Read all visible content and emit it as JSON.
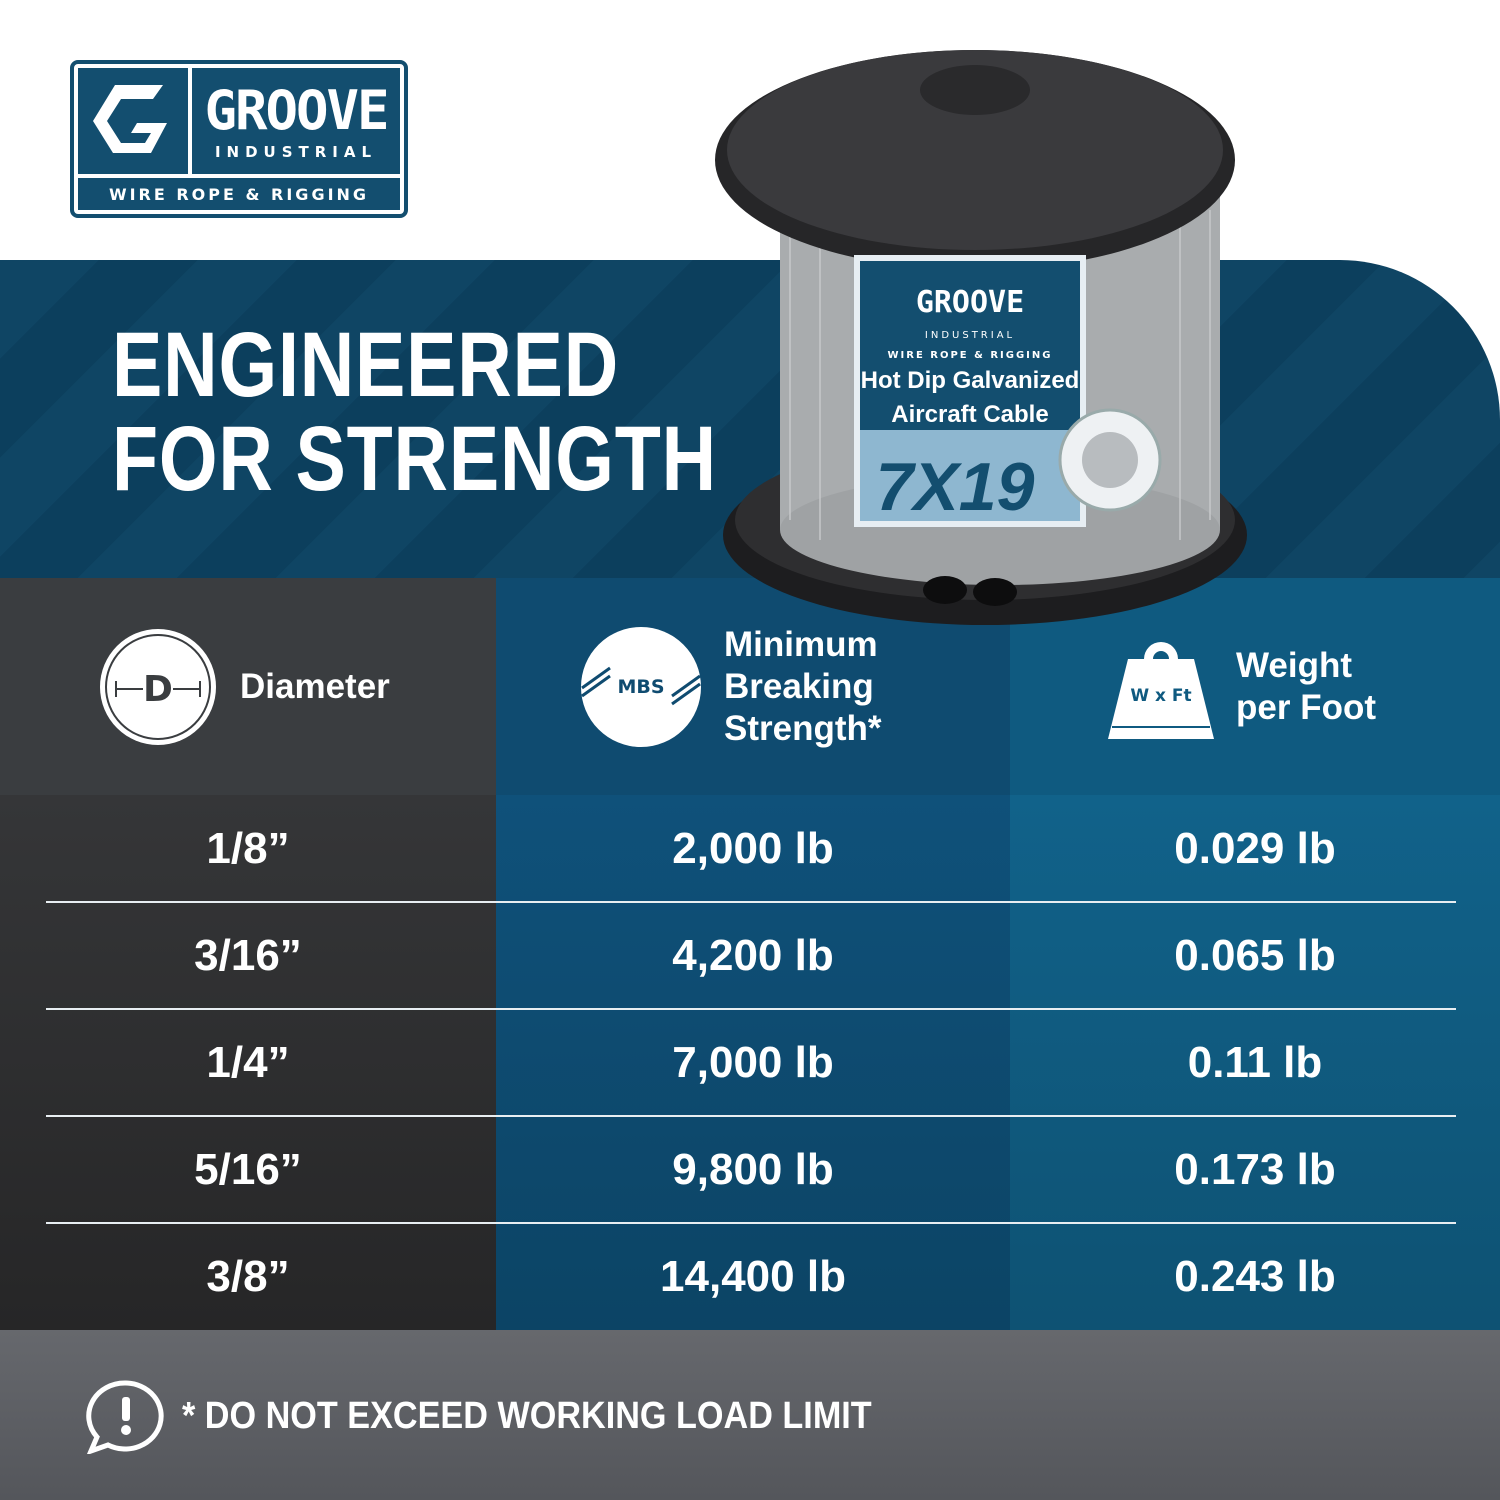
{
  "brand": {
    "name": "GROOVE",
    "sub": "INDUSTRIAL",
    "tagline": "WIRE ROPE & RIGGING",
    "color": "#134e6f"
  },
  "headline": {
    "line1": "ENGINEERED",
    "line2": "FOR STRENGTH"
  },
  "product_label": {
    "brand": "GROOVE",
    "sub": "INDUSTRIAL",
    "tagline": "WIRE ROPE & RIGGING",
    "line1": "Hot Dip Galvanized",
    "line2": "Aircraft Cable",
    "construction": "7X19"
  },
  "table": {
    "headers": [
      {
        "icon": "diameter-icon",
        "icon_text": "D",
        "label": "Diameter"
      },
      {
        "icon": "breaking-strength-icon",
        "icon_text": "MBS",
        "label_lines": [
          "Minimum",
          "Breaking",
          "Strength*"
        ]
      },
      {
        "icon": "weight-icon",
        "icon_text": "W x Ft",
        "label_lines": [
          "Weight",
          "per Foot"
        ]
      }
    ],
    "rows": [
      [
        "1/8”",
        "2,000 lb",
        "0.029 lb"
      ],
      [
        "3/16”",
        "4,200 lb",
        "0.065 lb"
      ],
      [
        "1/4”",
        "7,000 lb",
        "0.11 lb"
      ],
      [
        "5/16”",
        "9,800 lb",
        "0.173 lb"
      ],
      [
        "3/8”",
        "14,400 lb",
        "0.243 lb"
      ]
    ]
  },
  "footer": {
    "icon": "alert-speech-icon",
    "text": "* DO NOT EXCEED WORKING LOAD LIMIT"
  }
}
